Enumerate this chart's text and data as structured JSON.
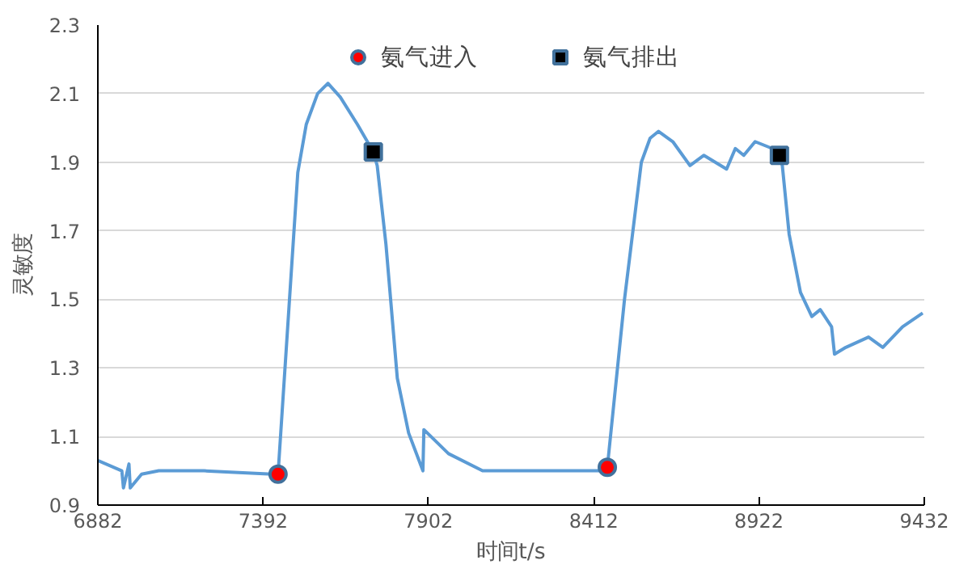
{
  "chart_data": {
    "type": "line",
    "xlabel": "时间t/s",
    "ylabel": "灵敏度",
    "xlim": [
      6882,
      9432
    ],
    "xticks": [
      6882,
      7392,
      7902,
      8412,
      8922,
      9432
    ],
    "ylim": [
      0.9,
      2.3
    ],
    "yticks": [
      0.9,
      1.1,
      1.3,
      1.5,
      1.7,
      1.9,
      2.1,
      2.3
    ],
    "grid": "y",
    "legend": "top",
    "series": [
      {
        "color": "#5b9bd5",
        "marker": "none",
        "line_style": "solid",
        "x": [
          6882,
          6956,
          6961,
          6978,
          6982,
          7017,
          7070,
          7210,
          7420,
          7438,
          7472,
          7499,
          7525,
          7560,
          7592,
          7630,
          7683,
          7732,
          7744,
          7771,
          7806,
          7841,
          7885,
          7888,
          7964,
          8069,
          8191,
          8211,
          8314,
          8437,
          8454,
          8507,
          8559,
          8586,
          8612,
          8656,
          8709,
          8752,
          8822,
          8849,
          8875,
          8910,
          8963,
          8985,
          8994,
          9015,
          9050,
          9085,
          9111,
          9146,
          9155,
          9190,
          9260,
          9304,
          9365,
          9427
        ],
        "values": [
          1.03,
          1.0,
          0.95,
          1.02,
          0.95,
          0.99,
          1.0,
          1.0,
          0.99,
          0.99,
          1.48,
          1.87,
          2.01,
          2.1,
          2.13,
          2.09,
          2.01,
          1.93,
          1.89,
          1.66,
          1.27,
          1.11,
          1.0,
          1.12,
          1.05,
          1.0,
          1.0,
          1.0,
          1.0,
          1.0,
          1.01,
          1.5,
          1.9,
          1.97,
          1.99,
          1.96,
          1.89,
          1.92,
          1.88,
          1.94,
          1.92,
          1.96,
          1.94,
          1.92,
          1.89,
          1.69,
          1.52,
          1.45,
          1.47,
          1.42,
          1.34,
          1.36,
          1.39,
          1.36,
          1.42,
          1.46
        ]
      },
      {
        "type": "scatter",
        "name": "氨气进入",
        "color": "#ff0000",
        "marker": "circle",
        "x": [
          7438,
          8454
        ],
        "values": [
          0.99,
          1.01
        ]
      },
      {
        "type": "scatter",
        "name": "氨气排出",
        "color": "#000000",
        "marker": "square",
        "x": [
          7732,
          8985
        ],
        "values": [
          1.93,
          1.92
        ]
      }
    ]
  }
}
